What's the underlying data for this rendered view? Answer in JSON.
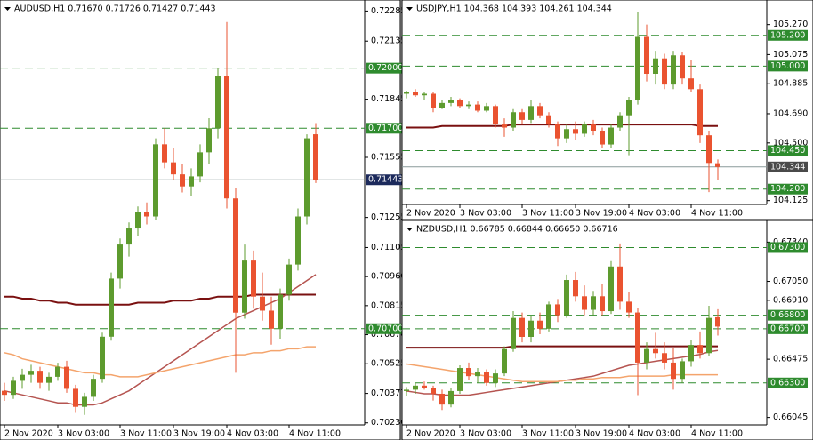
{
  "chart_data": [
    {
      "type": "candlestick",
      "title": "AUDUSD,H1  0.71670 0.71726 0.71427 0.71443",
      "categories": [
        "2 Nov 2020",
        null,
        null,
        null,
        null,
        null,
        "3 Nov 03:00",
        null,
        null,
        null,
        null,
        null,
        null,
        "3 Nov 11:00",
        null,
        null,
        null,
        null,
        null,
        "3 Nov 19:00",
        null,
        null,
        null,
        null,
        null,
        "4 Nov 03:00",
        null,
        null,
        null,
        null,
        null,
        null,
        "4 Nov 11:00",
        null,
        null,
        null
      ],
      "open": [
        0.7039,
        0.7037,
        0.7044,
        0.7047,
        0.7049,
        0.7043,
        0.7046,
        0.7051,
        0.704,
        0.7031,
        0.7036,
        0.7045,
        0.7066,
        0.7095,
        0.7112,
        0.712,
        0.7128,
        0.7126,
        0.7162,
        0.7153,
        0.7147,
        0.7141,
        0.7146,
        0.7158,
        0.717,
        0.7196,
        0.7135,
        0.7078,
        0.7104,
        0.7086,
        0.7079,
        0.707,
        0.7087,
        0.7102,
        0.7126,
        0.7167
      ],
      "high": [
        0.7043,
        0.7046,
        0.705,
        0.7052,
        0.7051,
        0.7048,
        0.7053,
        0.7054,
        0.7042,
        0.7038,
        0.7047,
        0.7068,
        0.7098,
        0.7115,
        0.7123,
        0.7131,
        0.7133,
        0.7165,
        0.717,
        0.716,
        0.7152,
        0.715,
        0.7162,
        0.7175,
        0.72,
        0.7223,
        0.714,
        0.7112,
        0.7109,
        0.7098,
        0.7086,
        0.709,
        0.7105,
        0.713,
        0.7167,
        0.71726
      ],
      "low": [
        0.7034,
        0.7035,
        0.704,
        0.7043,
        0.704,
        0.7039,
        0.7044,
        0.7038,
        0.7028,
        0.7027,
        0.7034,
        0.7043,
        0.7064,
        0.709,
        0.7106,
        0.7116,
        0.7122,
        0.7124,
        0.715,
        0.7144,
        0.7138,
        0.7136,
        0.7143,
        0.7152,
        0.7165,
        0.713,
        0.7048,
        0.7075,
        0.708,
        0.7074,
        0.7062,
        0.7065,
        0.7084,
        0.7099,
        0.7122,
        0.71427
      ],
      "close": [
        0.7037,
        0.7044,
        0.7047,
        0.7049,
        0.7043,
        0.7046,
        0.7051,
        0.704,
        0.7031,
        0.7036,
        0.7045,
        0.7066,
        0.7095,
        0.7112,
        0.712,
        0.7128,
        0.7126,
        0.7162,
        0.7153,
        0.7147,
        0.7141,
        0.7146,
        0.7158,
        0.717,
        0.7196,
        0.7135,
        0.7078,
        0.7104,
        0.7086,
        0.7079,
        0.707,
        0.7087,
        0.7102,
        0.7126,
        0.7165,
        0.71443
      ],
      "lines": [
        {
          "color": "#7a1010",
          "values": [
            0.7086,
            0.7086,
            0.7085,
            0.7085,
            0.7084,
            0.7084,
            0.7083,
            0.7083,
            0.7082,
            0.7082,
            0.7082,
            0.7082,
            0.7082,
            0.7082,
            0.7082,
            0.7083,
            0.7083,
            0.7083,
            0.7083,
            0.7084,
            0.7084,
            0.7084,
            0.7085,
            0.7085,
            0.7086,
            0.7086,
            0.7086,
            0.7086,
            0.7087,
            0.7087,
            0.7087,
            0.7087,
            0.7087,
            0.7087,
            0.7087,
            0.7087
          ]
        },
        {
          "color": "#b55450",
          "values": [
            0.7039,
            0.7038,
            0.7037,
            0.7036,
            0.7035,
            0.7034,
            0.7033,
            0.7033,
            0.7032,
            0.7032,
            0.7032,
            0.7033,
            0.7035,
            0.7037,
            0.7039,
            0.7042,
            0.7045,
            0.7048,
            0.7051,
            0.7054,
            0.7057,
            0.706,
            0.7063,
            0.7066,
            0.7069,
            0.7072,
            0.7075,
            0.7077,
            0.7079,
            0.7081,
            0.7083,
            0.7085,
            0.7088,
            0.7091,
            0.7094,
            0.7097
          ]
        },
        {
          "color": "#f4a46c",
          "values": [
            0.7058,
            0.7057,
            0.7055,
            0.7054,
            0.7053,
            0.7052,
            0.7051,
            0.705,
            0.7049,
            0.7048,
            0.7048,
            0.7047,
            0.7047,
            0.7046,
            0.7046,
            0.7046,
            0.7047,
            0.7048,
            0.7049,
            0.705,
            0.7051,
            0.7052,
            0.7053,
            0.7054,
            0.7055,
            0.7056,
            0.7057,
            0.7057,
            0.7058,
            0.7058,
            0.7059,
            0.7059,
            0.706,
            0.706,
            0.7061,
            0.7061
          ]
        }
      ],
      "ylim": [
        0.7022,
        0.7234
      ],
      "yticks": [
        0.72285,
        0.72135,
        0.71845,
        0.71555,
        0.71255,
        0.71105,
        {
          "value": 0.7096,
          "label": "0.70960"
        },
        0.70815,
        {
          "value": 0.7067,
          "label": "0.70670"
        },
        0.70525,
        0.70377,
        {
          "value": 0.7023,
          "label": "0.70230"
        }
      ],
      "levels": [
        {
          "value": 0.72,
          "label": "0.72000"
        },
        {
          "value": 0.717,
          "label": "0.71700"
        },
        {
          "value": 0.707,
          "label": "0.70700"
        }
      ],
      "current": 0.71443,
      "current_color": "#1c2a5c",
      "up_color": "#5d9b2e",
      "down_color": "#ea5330",
      "level_color": "#2e8b2e"
    },
    {
      "type": "candlestick",
      "title": "USDJPY,H1  104.368 104.393 104.261 104.344",
      "categories": [
        "2 Nov 2020",
        null,
        null,
        null,
        null,
        null,
        "3 Nov 03:00",
        null,
        null,
        null,
        null,
        null,
        null,
        "3 Nov 11:00",
        null,
        null,
        null,
        null,
        null,
        "3 Nov 19:00",
        null,
        null,
        null,
        null,
        null,
        "4 Nov 03:00",
        null,
        null,
        null,
        null,
        null,
        null,
        "4 Nov 11:00",
        null,
        null,
        null
      ],
      "open": [
        104.82,
        104.83,
        104.81,
        104.82,
        104.73,
        104.76,
        104.78,
        104.74,
        104.75,
        104.71,
        104.74,
        104.62,
        104.6,
        104.7,
        104.65,
        104.74,
        104.68,
        104.62,
        104.53,
        104.59,
        104.56,
        104.62,
        104.58,
        104.49,
        104.6,
        104.68,
        104.78,
        105.19,
        104.95,
        105.05,
        104.88,
        105.07,
        104.92,
        104.85,
        104.55,
        104.368
      ],
      "high": [
        104.84,
        104.85,
        104.83,
        104.83,
        104.78,
        104.8,
        104.79,
        104.77,
        104.77,
        104.76,
        104.75,
        104.66,
        104.72,
        104.72,
        104.78,
        104.76,
        104.7,
        104.64,
        104.62,
        104.64,
        104.64,
        104.65,
        104.6,
        104.62,
        104.7,
        104.8,
        105.35,
        105.27,
        105.1,
        105.08,
        105.1,
        105.09,
        105.04,
        104.88,
        104.58,
        104.393
      ],
      "low": [
        104.79,
        104.8,
        104.78,
        104.7,
        104.72,
        104.74,
        104.73,
        104.72,
        104.7,
        104.7,
        104.6,
        104.54,
        104.58,
        104.62,
        104.63,
        104.66,
        104.6,
        104.48,
        104.5,
        104.52,
        104.54,
        104.55,
        104.47,
        104.47,
        104.58,
        104.42,
        104.75,
        104.9,
        104.88,
        104.85,
        104.85,
        104.88,
        104.83,
        104.5,
        104.18,
        104.261
      ],
      "close": [
        104.83,
        104.81,
        104.82,
        104.73,
        104.76,
        104.78,
        104.74,
        104.75,
        104.71,
        104.74,
        104.62,
        104.6,
        104.7,
        104.65,
        104.74,
        104.68,
        104.62,
        104.53,
        104.59,
        104.56,
        104.62,
        104.58,
        104.49,
        104.6,
        104.68,
        104.78,
        105.19,
        104.95,
        105.05,
        104.88,
        105.07,
        104.92,
        104.85,
        104.55,
        104.37,
        104.344
      ],
      "lines": [
        {
          "color": "#7a1010",
          "values": [
            104.6,
            104.6,
            104.6,
            104.6,
            104.61,
            104.61,
            104.61,
            104.61,
            104.61,
            104.61,
            104.61,
            104.61,
            104.62,
            104.62,
            104.62,
            104.62,
            104.62,
            104.62,
            104.62,
            104.62,
            104.62,
            104.62,
            104.62,
            104.62,
            104.62,
            104.62,
            104.62,
            104.62,
            104.62,
            104.62,
            104.62,
            104.62,
            104.62,
            104.61,
            104.61,
            104.61
          ]
        }
      ],
      "ylim": [
        104.1,
        105.43
      ],
      "yticks": [
        {
          "value": 105.27,
          "label": "105.270"
        },
        105.075,
        104.885,
        {
          "value": 104.69,
          "label": "104.690"
        },
        {
          "value": 104.5,
          "label": "104.500"
        },
        104.125
      ],
      "levels": [
        {
          "value": 105.2,
          "label": "105.200"
        },
        {
          "value": 105,
          "label": "105.000"
        },
        {
          "value": 104.45,
          "label": "104.450"
        },
        {
          "value": 104.2,
          "label": "104.200"
        }
      ],
      "current": 104.344,
      "current_color": "#4a4a4a",
      "up_color": "#5d9b2e",
      "down_color": "#ea5330",
      "level_color": "#2e8b2e"
    },
    {
      "type": "candlestick",
      "title": "NZDUSD,H1  0.66785 0.66844 0.66650 0.66716",
      "categories": [
        "2 Nov 2020",
        null,
        null,
        null,
        null,
        null,
        "3 Nov 03:00",
        null,
        null,
        null,
        null,
        null,
        null,
        "3 Nov 11:00",
        null,
        null,
        null,
        null,
        null,
        "3 Nov 19:00",
        null,
        null,
        null,
        null,
        null,
        "4 Nov 03:00",
        null,
        null,
        null,
        null,
        null,
        null,
        "4 Nov 11:00",
        null,
        null,
        null
      ],
      "open": [
        0.6624,
        0.6625,
        0.6628,
        0.6626,
        0.6622,
        0.6614,
        0.6624,
        0.6641,
        0.6635,
        0.6638,
        0.663,
        0.6637,
        0.6655,
        0.6678,
        0.6664,
        0.6676,
        0.667,
        0.6688,
        0.668,
        0.6706,
        0.6694,
        0.6684,
        0.6694,
        0.6683,
        0.6716,
        0.669,
        0.6682,
        0.6645,
        0.6655,
        0.6652,
        0.6645,
        0.6633,
        0.6646,
        0.6658,
        0.6652,
        0.66785
      ],
      "high": [
        0.6627,
        0.663,
        0.6631,
        0.6628,
        0.6625,
        0.6626,
        0.6643,
        0.6645,
        0.6641,
        0.664,
        0.664,
        0.6657,
        0.6683,
        0.6682,
        0.668,
        0.6682,
        0.669,
        0.6692,
        0.671,
        0.6712,
        0.6702,
        0.6698,
        0.6703,
        0.672,
        0.6733,
        0.6697,
        0.6685,
        0.666,
        0.6667,
        0.666,
        0.6656,
        0.6648,
        0.6662,
        0.6668,
        0.6687,
        0.66844
      ],
      "low": [
        0.662,
        0.6622,
        0.6625,
        0.6617,
        0.661,
        0.6612,
        0.6622,
        0.6632,
        0.663,
        0.6628,
        0.6627,
        0.6635,
        0.6653,
        0.666,
        0.666,
        0.6666,
        0.6668,
        0.6675,
        0.6678,
        0.669,
        0.668,
        0.668,
        0.668,
        0.6681,
        0.6684,
        0.6678,
        0.6621,
        0.664,
        0.6648,
        0.664,
        0.6625,
        0.663,
        0.6642,
        0.6648,
        0.665,
        0.6665
      ],
      "close": [
        0.6625,
        0.6628,
        0.6626,
        0.6622,
        0.6614,
        0.6624,
        0.6641,
        0.6635,
        0.6638,
        0.663,
        0.6637,
        0.6655,
        0.6678,
        0.6664,
        0.6676,
        0.667,
        0.6688,
        0.668,
        0.6706,
        0.6694,
        0.6684,
        0.6694,
        0.6683,
        0.6716,
        0.669,
        0.6682,
        0.6645,
        0.6655,
        0.6652,
        0.6645,
        0.6633,
        0.6646,
        0.6658,
        0.6652,
        0.6678,
        0.66716
      ],
      "lines": [
        {
          "color": "#7a1010",
          "values": [
            0.6656,
            0.6656,
            0.6656,
            0.6656,
            0.6656,
            0.6656,
            0.6656,
            0.6656,
            0.6656,
            0.6656,
            0.6656,
            0.6656,
            0.6657,
            0.6657,
            0.6657,
            0.6657,
            0.6657,
            0.6657,
            0.6657,
            0.6657,
            0.6657,
            0.6657,
            0.6657,
            0.6657,
            0.6657,
            0.6657,
            0.6657,
            0.6657,
            0.6657,
            0.6657,
            0.6657,
            0.6657,
            0.6657,
            0.6657,
            0.6657,
            0.6657
          ]
        },
        {
          "color": "#b55450",
          "values": [
            0.6624,
            0.6623,
            0.6622,
            0.6622,
            0.6621,
            0.6621,
            0.6621,
            0.6621,
            0.6622,
            0.6623,
            0.6624,
            0.6625,
            0.6626,
            0.6627,
            0.6628,
            0.6629,
            0.663,
            0.6631,
            0.6632,
            0.6633,
            0.6634,
            0.6635,
            0.6637,
            0.6639,
            0.6641,
            0.6643,
            0.6644,
            0.6645,
            0.6646,
            0.6647,
            0.6648,
            0.6649,
            0.665,
            0.6651,
            0.6653,
            0.6654
          ]
        },
        {
          "color": "#f4a46c",
          "values": [
            0.6644,
            0.6643,
            0.6642,
            0.6641,
            0.664,
            0.6639,
            0.6638,
            0.6637,
            0.6636,
            0.6635,
            0.6634,
            0.6633,
            0.6632,
            0.6631,
            0.6631,
            0.6631,
            0.6631,
            0.6631,
            0.6632,
            0.6632,
            0.6633,
            0.6633,
            0.6634,
            0.6634,
            0.6634,
            0.6635,
            0.6635,
            0.6635,
            0.6635,
            0.6635,
            0.6636,
            0.6636,
            0.6636,
            0.6636,
            0.6636,
            0.6636
          ]
        }
      ],
      "ylim": [
        0.6599,
        0.675
      ],
      "yticks": [
        {
          "value": 0.6734,
          "label": "0.67340"
        },
        {
          "value": 0.6705,
          "label": "0.67050"
        },
        {
          "value": 0.6691,
          "label": "0.66910"
        },
        0.66475,
        0.66045
      ],
      "levels": [
        {
          "value": 0.673,
          "label": "0.67300"
        },
        {
          "value": 0.668,
          "label": "0.66800"
        },
        {
          "value": 0.667,
          "label": "0.66700"
        },
        {
          "value": 0.663,
          "label": "0.66300"
        }
      ],
      "up_color": "#5d9b2e",
      "down_color": "#ea5330",
      "level_color": "#2e8b2e"
    }
  ]
}
